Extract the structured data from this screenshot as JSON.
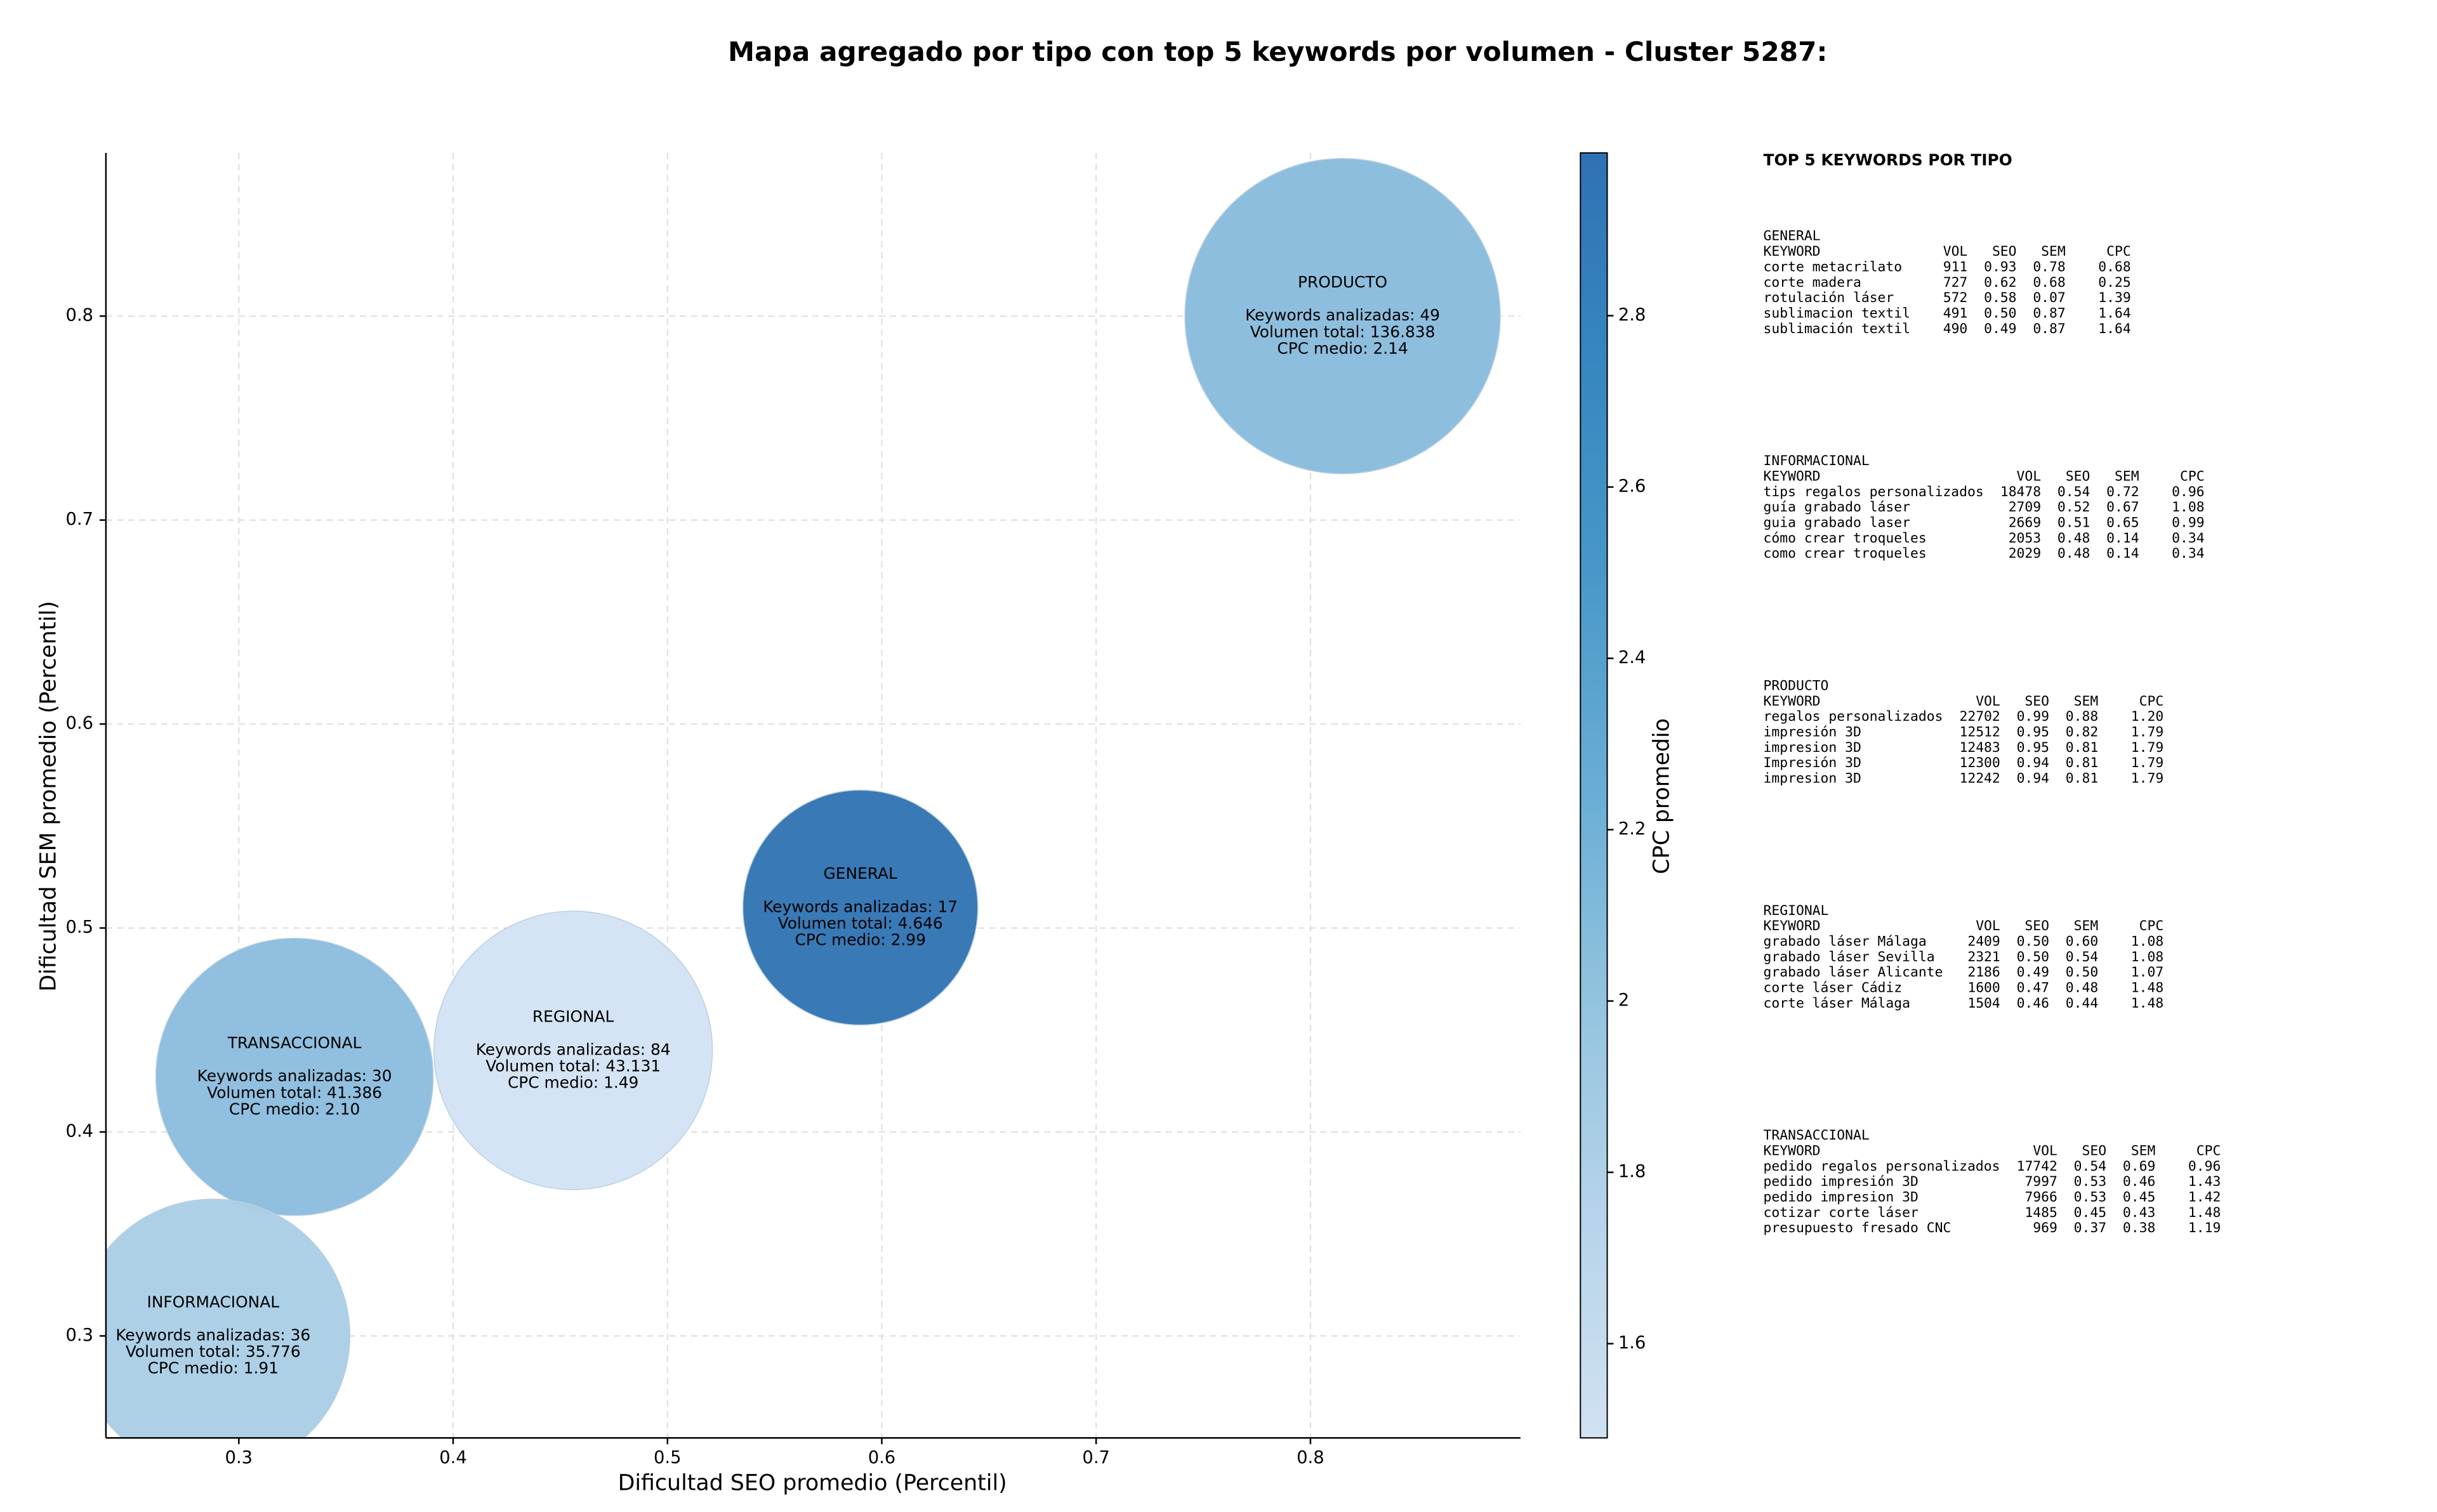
{
  "chart_data": {
    "type": "bubble",
    "title": "Mapa agregado por tipo con top 5 keywords por volumen - Cluster 5287:",
    "x_label": "Dificultad SEO promedio (Percentil)",
    "y_label": "Dificultad SEM promedio (Percentil)",
    "xlim": [
      0.238,
      0.898
    ],
    "ylim": [
      0.25,
      0.88
    ],
    "xticks": [
      0.3,
      0.4,
      0.5,
      0.6,
      0.7,
      0.8
    ],
    "yticks": [
      0.3,
      0.4,
      0.5,
      0.6,
      0.7,
      0.8
    ],
    "grid": true,
    "points": [
      {
        "name": "PRODUCTO",
        "x": 0.815,
        "y": 0.8,
        "size": 136838,
        "color": "#88bbdc",
        "lines": [
          "Keywords analizadas: 49",
          "Volumen total: 136.838",
          "CPC medio: 2.14"
        ]
      },
      {
        "name": "GENERAL",
        "x": 0.59,
        "y": 0.51,
        "size": 4646,
        "color": "#2e72b2",
        "lines": [
          "Keywords analizadas: 17",
          "Volumen total: 4.646",
          "CPC medio: 2.99"
        ]
      },
      {
        "name": "REGIONAL",
        "x": 0.456,
        "y": 0.44,
        "size": 43131,
        "color": "#d2e3f3",
        "lines": [
          "Keywords analizadas: 84",
          "Volumen total: 43.131",
          "CPC medio: 1.49"
        ]
      },
      {
        "name": "TRANSACCIONAL",
        "x": 0.326,
        "y": 0.427,
        "size": 41386,
        "color": "#8abcdd",
        "lines": [
          "Keywords analizadas: 30",
          "Volumen total: 41.386",
          "CPC medio: 2.10"
        ]
      },
      {
        "name": "INFORMACIONAL",
        "x": 0.288,
        "y": 0.3,
        "size": 35776,
        "color": "#a9cee5",
        "lines": [
          "Keywords analizadas: 36",
          "Volumen total: 35.776",
          "CPC medio: 1.91"
        ]
      }
    ],
    "colorbar": {
      "label": "CPC promedio",
      "lim": [
        1.49,
        2.99
      ],
      "ticks": [
        1.6,
        1.8,
        2.0,
        2.2,
        2.4,
        2.6,
        2.8
      ],
      "colors": [
        "#d0e1f2",
        "#b7d4ea",
        "#94c4df",
        "#6aaed6",
        "#4a98c9",
        "#3787c0",
        "#2f72b3"
      ]
    }
  },
  "keyword_tables": {
    "title": "TOP 5 KEYWORDS POR TIPO",
    "groups": [
      {
        "name": "GENERAL",
        "header": [
          "KEYWORD",
          "VOL",
          "SEO",
          "SEM",
          "CPC"
        ],
        "rows": [
          [
            "corte metacrilato",
            "911",
            "0.93",
            "0.78",
            "0.68"
          ],
          [
            "corte madera",
            "727",
            "0.62",
            "0.68",
            "0.25"
          ],
          [
            "rotulación láser",
            "572",
            "0.58",
            "0.07",
            "1.39"
          ],
          [
            "sublimacion textil",
            "491",
            "0.50",
            "0.87",
            "1.64"
          ],
          [
            "sublimación textil",
            "490",
            "0.49",
            "0.87",
            "1.64"
          ]
        ]
      },
      {
        "name": "INFORMACIONAL",
        "header": [
          "KEYWORD",
          "VOL",
          "SEO",
          "SEM",
          "CPC"
        ],
        "rows": [
          [
            "tips regalos personalizados",
            "18478",
            "0.54",
            "0.72",
            "0.96"
          ],
          [
            "guía grabado láser",
            "2709",
            "0.52",
            "0.67",
            "1.08"
          ],
          [
            "guia grabado laser",
            "2669",
            "0.51",
            "0.65",
            "0.99"
          ],
          [
            "cómo crear troqueles",
            "2053",
            "0.48",
            "0.14",
            "0.34"
          ],
          [
            "como crear troqueles",
            "2029",
            "0.48",
            "0.14",
            "0.34"
          ]
        ]
      },
      {
        "name": "PRODUCTO",
        "header": [
          "KEYWORD",
          "VOL",
          "SEO",
          "SEM",
          "CPC"
        ],
        "rows": [
          [
            "regalos personalizados",
            "22702",
            "0.99",
            "0.88",
            "1.20"
          ],
          [
            "impresión 3D",
            "12512",
            "0.95",
            "0.82",
            "1.79"
          ],
          [
            "impresion 3D",
            "12483",
            "0.95",
            "0.81",
            "1.79"
          ],
          [
            "Impresión 3D",
            "12300",
            "0.94",
            "0.81",
            "1.79"
          ],
          [
            "impresion 3D",
            "12242",
            "0.94",
            "0.81",
            "1.79"
          ]
        ]
      },
      {
        "name": "REGIONAL",
        "header": [
          "KEYWORD",
          "VOL",
          "SEO",
          "SEM",
          "CPC"
        ],
        "rows": [
          [
            "grabado láser Málaga",
            "2409",
            "0.50",
            "0.60",
            "1.08"
          ],
          [
            "grabado láser Sevilla",
            "2321",
            "0.50",
            "0.54",
            "1.08"
          ],
          [
            "grabado láser Alicante",
            "2186",
            "0.49",
            "0.50",
            "1.07"
          ],
          [
            "corte láser Cádiz",
            "1600",
            "0.47",
            "0.48",
            "1.48"
          ],
          [
            "corte láser Málaga",
            "1504",
            "0.46",
            "0.44",
            "1.48"
          ]
        ]
      },
      {
        "name": "TRANSACCIONAL",
        "header": [
          "KEYWORD",
          "VOL",
          "SEO",
          "SEM",
          "CPC"
        ],
        "rows": [
          [
            "pedido regalos personalizados",
            "17742",
            "0.54",
            "0.69",
            "0.96"
          ],
          [
            "pedido impresión 3D",
            "7997",
            "0.53",
            "0.46",
            "1.43"
          ],
          [
            "pedido impresion 3D",
            "7966",
            "0.53",
            "0.45",
            "1.42"
          ],
          [
            "cotizar corte láser",
            "1485",
            "0.45",
            "0.43",
            "1.48"
          ],
          [
            "presupuesto fresado CNC",
            "969",
            "0.37",
            "0.38",
            "1.19"
          ]
        ]
      }
    ]
  }
}
